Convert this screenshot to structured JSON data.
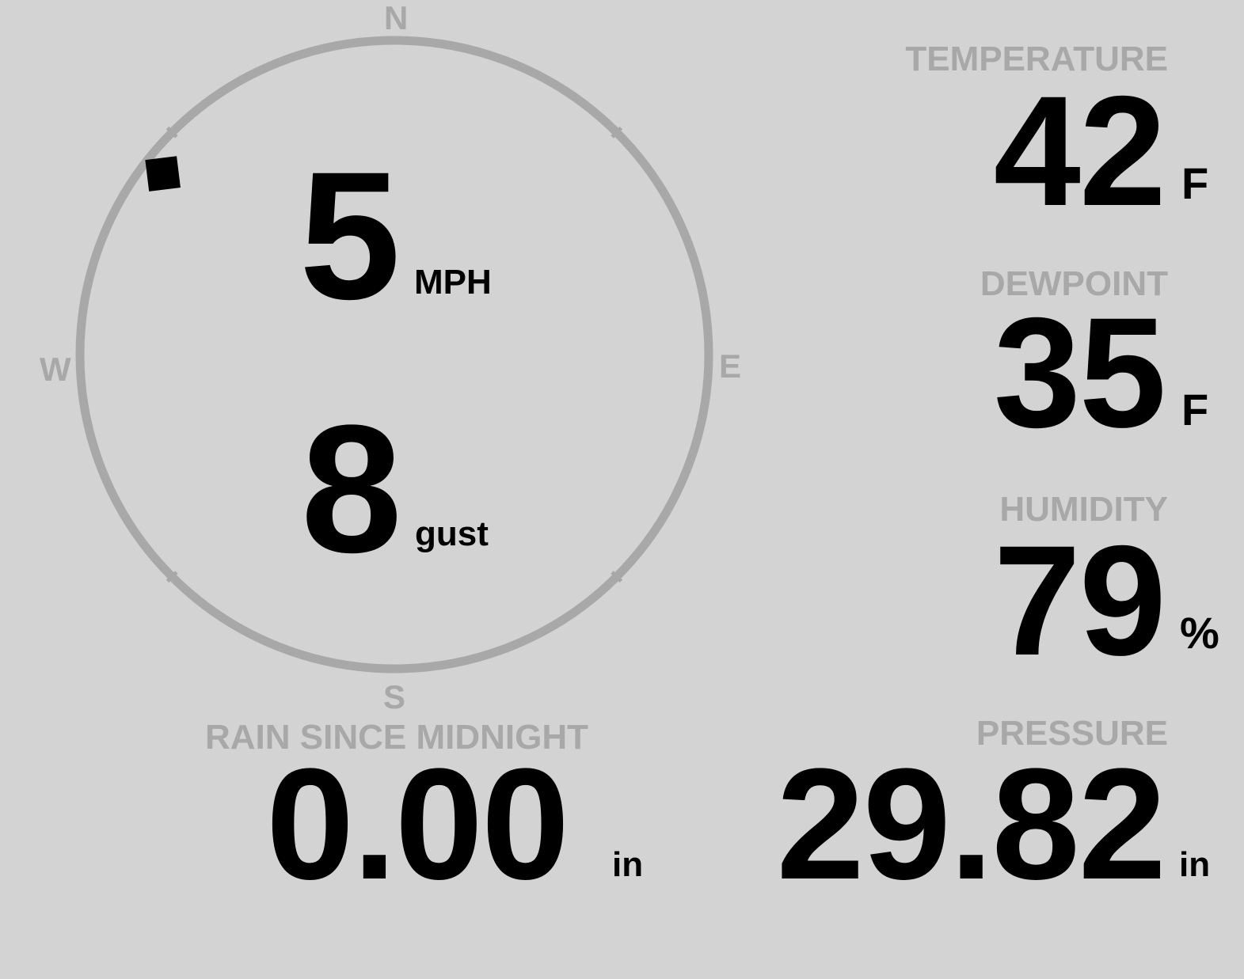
{
  "colors": {
    "background": "#d3d3d3",
    "label": "#a8a8a8",
    "value": "#000000"
  },
  "wind": {
    "compass": {
      "north": "N",
      "east": "E",
      "south": "S",
      "west": "W"
    },
    "direction_deg": 308,
    "speed": "5",
    "speed_unit": "MPH",
    "gust": "8",
    "gust_unit": "gust"
  },
  "temperature": {
    "label": "TEMPERATURE",
    "value": "42",
    "unit": "F"
  },
  "dewpoint": {
    "label": "DEWPOINT",
    "value": "35",
    "unit": "F"
  },
  "humidity": {
    "label": "HUMIDITY",
    "value": "79",
    "unit": "%"
  },
  "rain": {
    "label": "RAIN SINCE MIDNIGHT",
    "value": "0.00",
    "unit": "in"
  },
  "pressure": {
    "label": "PRESSURE",
    "value": "29.82",
    "unit": "in"
  }
}
